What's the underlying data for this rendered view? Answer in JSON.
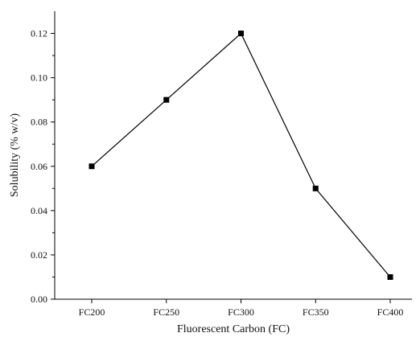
{
  "chart_data": {
    "type": "line",
    "title": "",
    "xlabel": "Fluorescent Carbon (FC)",
    "ylabel": "Solubility (% w/v)",
    "categories": [
      "FC200",
      "FC250",
      "FC300",
      "FC350",
      "FC400"
    ],
    "series": [
      {
        "values": [
          0.06,
          0.09,
          0.12,
          0.05,
          0.01
        ]
      }
    ],
    "ylim": [
      0,
      0.13
    ],
    "yticks": [
      "0.00",
      "0.02",
      "0.04",
      "0.06",
      "0.08",
      "0.10",
      "0.12"
    ],
    "grid": false,
    "marker": "square",
    "line_color": "#000000"
  }
}
